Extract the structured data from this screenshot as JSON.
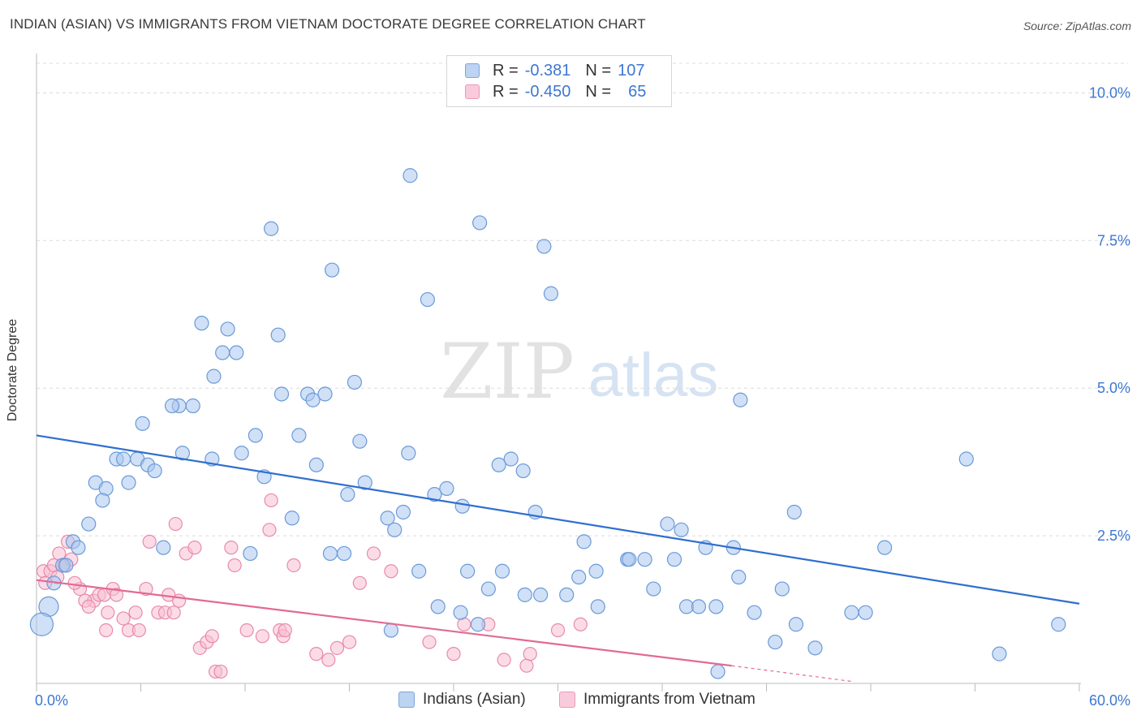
{
  "header": {
    "title": "INDIAN (ASIAN) VS IMMIGRANTS FROM VIETNAM DOCTORATE DEGREE CORRELATION CHART",
    "source": "Source: ZipAtlas.com"
  },
  "watermark": {
    "zip": "ZIP",
    "atlas": "atlas"
  },
  "legend": {
    "rows": [
      {
        "r_label": "R =",
        "r_value": "-0.381",
        "n_label": "N =",
        "n_value": "107",
        "color": "#9dbde8"
      },
      {
        "r_label": "R =",
        "r_value": "-0.450",
        "n_label": "N =",
        "n_value": "65",
        "color": "#f4a7c0"
      }
    ]
  },
  "colors": {
    "blue_fill": "#a9c7ee",
    "blue_stroke": "#6a9ad8",
    "blue_line": "#2f6fd0",
    "pink_fill": "#f8bfd2",
    "pink_stroke": "#e88aaa",
    "pink_line": "#e26a94",
    "tick_label": "#3d77d3",
    "grid": "#dcdcdc"
  },
  "chart_data": {
    "type": "scatter",
    "title": "INDIAN (ASIAN) VS IMMIGRANTS FROM VIETNAM DOCTORATE DEGREE CORRELATION CHART",
    "xlabel": "",
    "ylabel": "Doctorate Degree",
    "xlim": [
      0,
      60
    ],
    "ylim": [
      0,
      10.5
    ],
    "x_tick_labels": [
      "0.0%",
      "60.0%"
    ],
    "y_ticks": [
      2.5,
      5.0,
      7.5,
      10.0
    ],
    "y_tick_labels": [
      "2.5%",
      "5.0%",
      "7.5%",
      "10.0%"
    ],
    "grid": true,
    "legend_position": "top-center",
    "series": [
      {
        "name": "Indians (Asian)",
        "r": -0.381,
        "n": 107,
        "trend": {
          "x0": 0,
          "y0": 4.2,
          "x1": 60,
          "y1": 1.35
        },
        "points": [
          [
            21.5,
            8.6
          ],
          [
            25.5,
            7.8
          ],
          [
            13.5,
            7.7
          ],
          [
            29.2,
            7.4
          ],
          [
            17.0,
            7.0
          ],
          [
            22.5,
            6.5
          ],
          [
            29.6,
            6.6
          ],
          [
            9.5,
            6.1
          ],
          [
            11.0,
            6.0
          ],
          [
            13.9,
            5.9
          ],
          [
            10.7,
            5.6
          ],
          [
            11.5,
            5.6
          ],
          [
            10.2,
            5.2
          ],
          [
            18.3,
            5.1
          ],
          [
            8.2,
            4.7
          ],
          [
            7.8,
            4.7
          ],
          [
            9.0,
            4.7
          ],
          [
            14.1,
            4.9
          ],
          [
            15.6,
            4.9
          ],
          [
            15.9,
            4.8
          ],
          [
            16.6,
            4.9
          ],
          [
            40.5,
            4.8
          ],
          [
            6.1,
            4.4
          ],
          [
            12.6,
            4.2
          ],
          [
            15.1,
            4.2
          ],
          [
            18.6,
            4.1
          ],
          [
            8.4,
            3.9
          ],
          [
            10.1,
            3.8
          ],
          [
            11.8,
            3.9
          ],
          [
            21.4,
            3.9
          ],
          [
            4.6,
            3.8
          ],
          [
            5.0,
            3.8
          ],
          [
            5.8,
            3.8
          ],
          [
            6.4,
            3.7
          ],
          [
            6.8,
            3.6
          ],
          [
            16.1,
            3.7
          ],
          [
            26.6,
            3.7
          ],
          [
            27.3,
            3.8
          ],
          [
            28.0,
            3.6
          ],
          [
            53.5,
            3.8
          ],
          [
            3.4,
            3.4
          ],
          [
            4.0,
            3.3
          ],
          [
            5.3,
            3.4
          ],
          [
            13.1,
            3.5
          ],
          [
            18.9,
            3.4
          ],
          [
            3.8,
            3.1
          ],
          [
            17.9,
            3.2
          ],
          [
            22.9,
            3.2
          ],
          [
            23.6,
            3.3
          ],
          [
            24.5,
            3.0
          ],
          [
            14.7,
            2.8
          ],
          [
            20.2,
            2.8
          ],
          [
            21.1,
            2.9
          ],
          [
            28.7,
            2.9
          ],
          [
            43.6,
            2.9
          ],
          [
            3.0,
            2.7
          ],
          [
            20.6,
            2.6
          ],
          [
            36.3,
            2.7
          ],
          [
            37.1,
            2.6
          ],
          [
            2.1,
            2.4
          ],
          [
            2.4,
            2.3
          ],
          [
            7.3,
            2.3
          ],
          [
            12.3,
            2.2
          ],
          [
            16.9,
            2.2
          ],
          [
            17.7,
            2.2
          ],
          [
            31.5,
            2.4
          ],
          [
            34.0,
            2.1
          ],
          [
            34.1,
            2.1
          ],
          [
            36.7,
            2.1
          ],
          [
            38.5,
            2.3
          ],
          [
            40.1,
            2.3
          ],
          [
            48.8,
            2.3
          ],
          [
            1.5,
            2.0
          ],
          [
            1.7,
            2.0
          ],
          [
            22.0,
            1.9
          ],
          [
            24.8,
            1.9
          ],
          [
            26.8,
            1.9
          ],
          [
            31.2,
            1.8
          ],
          [
            32.2,
            1.9
          ],
          [
            40.4,
            1.8
          ],
          [
            1.0,
            1.7
          ],
          [
            26.0,
            1.6
          ],
          [
            28.1,
            1.5
          ],
          [
            29.0,
            1.5
          ],
          [
            30.5,
            1.5
          ],
          [
            35.5,
            1.6
          ],
          [
            42.9,
            1.6
          ],
          [
            0.7,
            1.3
          ],
          [
            23.1,
            1.3
          ],
          [
            32.3,
            1.3
          ],
          [
            37.4,
            1.3
          ],
          [
            38.1,
            1.3
          ],
          [
            39.1,
            1.3
          ],
          [
            41.3,
            1.2
          ],
          [
            46.9,
            1.2
          ],
          [
            47.7,
            1.2
          ],
          [
            24.4,
            1.2
          ],
          [
            0.3,
            1.0
          ],
          [
            25.4,
            1.0
          ],
          [
            43.7,
            1.0
          ],
          [
            20.4,
            0.9
          ],
          [
            42.5,
            0.7
          ],
          [
            44.8,
            0.6
          ],
          [
            55.4,
            0.5
          ],
          [
            58.8,
            1.0
          ],
          [
            39.2,
            0.2
          ],
          [
            35.0,
            2.1
          ]
        ]
      },
      {
        "name": "Immigrants from Vietnam",
        "r": -0.45,
        "n": 65,
        "trend": {
          "x0": 0,
          "y0": 1.75,
          "x1": 40,
          "y1": 0.3,
          "dash_x1": 47,
          "dash_y1": 0.03
        },
        "points": [
          [
            0.4,
            1.9
          ],
          [
            0.8,
            1.9
          ],
          [
            1.0,
            2.0
          ],
          [
            1.3,
            2.2
          ],
          [
            1.6,
            2.0
          ],
          [
            1.8,
            2.4
          ],
          [
            2.0,
            2.1
          ],
          [
            0.5,
            1.7
          ],
          [
            1.2,
            1.8
          ],
          [
            2.5,
            1.6
          ],
          [
            3.3,
            1.4
          ],
          [
            3.6,
            1.5
          ],
          [
            3.9,
            1.5
          ],
          [
            4.4,
            1.6
          ],
          [
            4.6,
            1.5
          ],
          [
            2.8,
            1.4
          ],
          [
            3.0,
            1.3
          ],
          [
            4.1,
            1.2
          ],
          [
            5.0,
            1.1
          ],
          [
            5.7,
            1.2
          ],
          [
            6.3,
            1.6
          ],
          [
            6.5,
            2.4
          ],
          [
            7.0,
            1.2
          ],
          [
            7.4,
            1.2
          ],
          [
            7.6,
            1.5
          ],
          [
            7.9,
            1.2
          ],
          [
            8.2,
            1.4
          ],
          [
            8.0,
            2.7
          ],
          [
            8.6,
            2.2
          ],
          [
            9.1,
            2.3
          ],
          [
            9.4,
            0.6
          ],
          [
            9.8,
            0.7
          ],
          [
            10.1,
            0.8
          ],
          [
            10.3,
            0.2
          ],
          [
            10.6,
            0.2
          ],
          [
            11.2,
            2.3
          ],
          [
            11.4,
            2.0
          ],
          [
            12.1,
            0.9
          ],
          [
            13.0,
            0.8
          ],
          [
            13.4,
            2.6
          ],
          [
            13.5,
            3.1
          ],
          [
            14.0,
            0.9
          ],
          [
            14.2,
            0.8
          ],
          [
            14.3,
            0.9
          ],
          [
            14.8,
            2.0
          ],
          [
            16.1,
            0.5
          ],
          [
            16.8,
            0.4
          ],
          [
            17.3,
            0.6
          ],
          [
            18.0,
            0.7
          ],
          [
            18.6,
            1.7
          ],
          [
            19.4,
            2.2
          ],
          [
            20.4,
            1.9
          ],
          [
            22.6,
            0.7
          ],
          [
            24.0,
            0.5
          ],
          [
            24.6,
            1.0
          ],
          [
            26.0,
            1.0
          ],
          [
            26.9,
            0.4
          ],
          [
            28.2,
            0.3
          ],
          [
            28.4,
            0.5
          ],
          [
            30.0,
            0.9
          ],
          [
            31.3,
            1.0
          ],
          [
            4.0,
            0.9
          ],
          [
            5.3,
            0.9
          ],
          [
            2.2,
            1.7
          ],
          [
            5.9,
            0.9
          ]
        ]
      }
    ]
  },
  "bottom_legend": {
    "items": [
      {
        "label": "Indians (Asian)"
      },
      {
        "label": "Immigrants from Vietnam"
      }
    ]
  }
}
